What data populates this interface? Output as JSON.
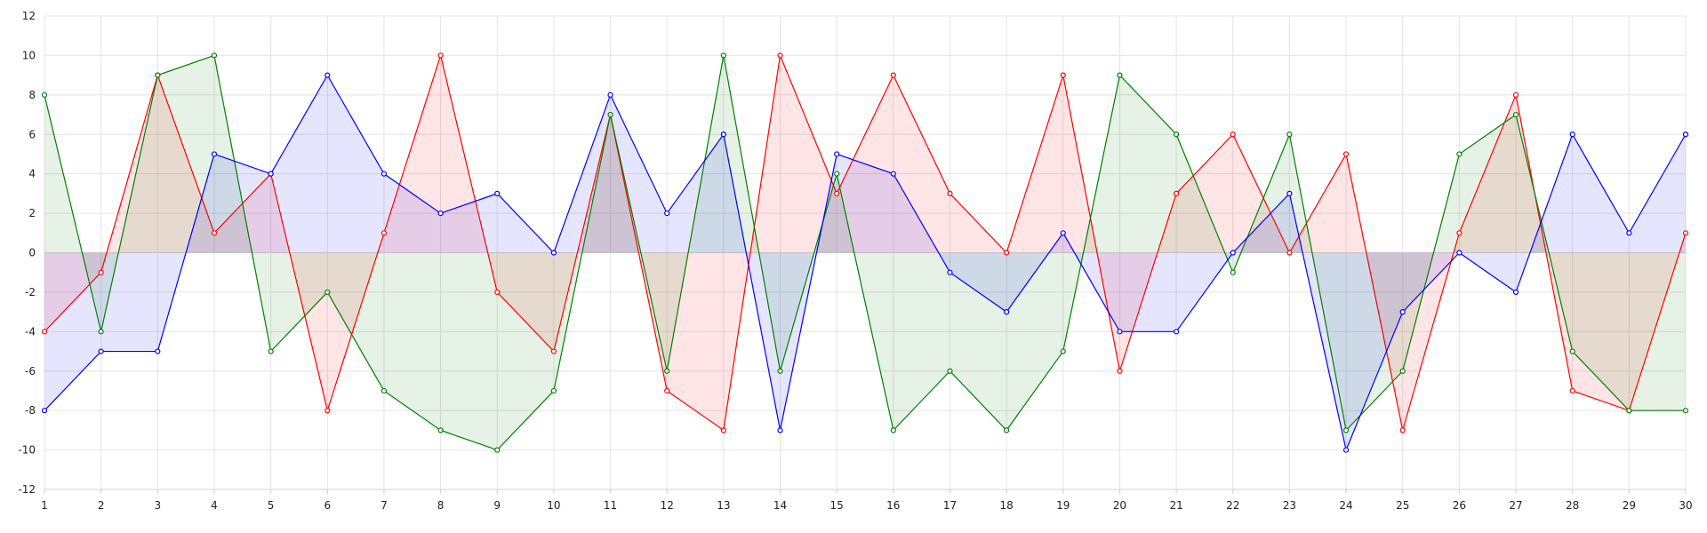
{
  "chart_data": {
    "type": "area",
    "title": "",
    "xlabel": "",
    "ylabel": "",
    "x": [
      1,
      2,
      3,
      4,
      5,
      6,
      7,
      8,
      9,
      10,
      11,
      12,
      13,
      14,
      15,
      16,
      17,
      18,
      19,
      20,
      21,
      22,
      23,
      24,
      25,
      26,
      27,
      28,
      29,
      30
    ],
    "ylim": [
      -12,
      12
    ],
    "y_ticks": [
      12,
      10,
      8,
      6,
      4,
      2,
      0,
      -2,
      -4,
      -6,
      -8,
      -10,
      -12
    ],
    "grid": true,
    "legend": "none",
    "fill_to": 0,
    "series": [
      {
        "color": "#ff0000",
        "values": [
          -4,
          -1,
          9,
          1,
          4,
          -8,
          1,
          10,
          -2,
          -5,
          7,
          -7,
          -9,
          10,
          3,
          9,
          3,
          0,
          9,
          -6,
          3,
          6,
          0,
          5,
          -9,
          1,
          8,
          -7,
          -8,
          1
        ]
      },
      {
        "color": "#008000",
        "values": [
          8,
          -4,
          9,
          10,
          -5,
          -2,
          -7,
          -9,
          -10,
          -7,
          7,
          -6,
          10,
          -6,
          4,
          -9,
          -6,
          -9,
          -5,
          9,
          6,
          -1,
          6,
          -9,
          -6,
          5,
          7,
          -5,
          -8,
          -8
        ]
      },
      {
        "color": "#0000ff",
        "values": [
          -8,
          -5,
          -5,
          5,
          4,
          9,
          4,
          2,
          3,
          0,
          8,
          2,
          6,
          -9,
          5,
          4,
          -1,
          -3,
          1,
          -4,
          -4,
          0,
          3,
          -10,
          -3,
          0,
          -2,
          6,
          1,
          6
        ]
      }
    ]
  }
}
